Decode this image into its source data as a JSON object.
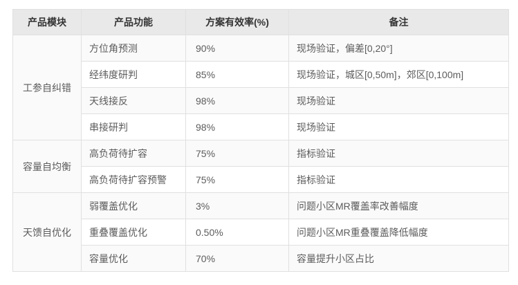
{
  "chart_data": {
    "type": "table",
    "columns": [
      "产品模块",
      "产品功能",
      "方案有效率(%)",
      "备注"
    ],
    "groups": [
      {
        "module": "工参自纠错",
        "rows": [
          {
            "function": "方位角预测",
            "rate": "90%",
            "remark": "现场验证，偏差[0,20°]"
          },
          {
            "function": "经纬度研判",
            "rate": "85%",
            "remark": "现场验证，城区[0,50m]，郊区[0,100m]"
          },
          {
            "function": "天线接反",
            "rate": "98%",
            "remark": "现场验证"
          },
          {
            "function": "串接研判",
            "rate": "98%",
            "remark": "现场验证"
          }
        ]
      },
      {
        "module": "容量自均衡",
        "rows": [
          {
            "function": "高负荷待扩容",
            "rate": "75%",
            "remark": "指标验证"
          },
          {
            "function": "高负荷待扩容预警",
            "rate": "75%",
            "remark": "指标验证"
          }
        ]
      },
      {
        "module": "天馈自优化",
        "rows": [
          {
            "function": "弱覆盖优化",
            "rate": "3%",
            "remark": "问题小区MR覆盖率改善幅度"
          },
          {
            "function": "重叠覆盖优化",
            "rate": "0.50%",
            "remark": "问题小区MR重叠覆盖降低幅度"
          },
          {
            "function": "容量优化",
            "rate": "70%",
            "remark": "容量提升小区占比"
          }
        ]
      }
    ],
    "colors": {
      "header_bg": "#e9e9e9",
      "header_text": "#333333",
      "body_text": "#5c5c5c",
      "border": "#e0e0e0",
      "row_odd_bg": "#fafafa",
      "row_even_bg": "#ffffff",
      "page_bg": "#ffffff"
    }
  }
}
